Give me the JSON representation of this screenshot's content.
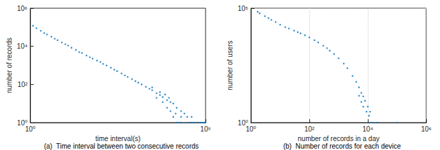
{
  "chart_data": [
    {
      "type": "scatter",
      "title": "(a)  Time interval between two consecutive records",
      "x_label": "time interval(s)",
      "y_label": "number of records",
      "log": true,
      "grid": false,
      "color": "#0072bd",
      "marker": "dot",
      "xlim": [
        1,
        100000
      ],
      "ylim": [
        1,
        1000000
      ],
      "xticks": [
        {
          "value": 1,
          "label": "10⁰"
        },
        {
          "value": 100000,
          "label": "10⁵"
        }
      ],
      "yticks": [
        {
          "value": 1,
          "label": "10⁰"
        },
        {
          "value": 100,
          "label": "10²"
        },
        {
          "value": 10000,
          "label": "10⁴"
        },
        {
          "value": 1000000,
          "label": "10⁶"
        }
      ],
      "x": [
        1.2,
        1.5,
        2,
        2.5,
        3,
        4,
        5,
        6,
        8,
        10,
        12,
        15,
        20,
        25,
        30,
        40,
        50,
        60,
        80,
        100,
        120,
        150,
        200,
        250,
        300,
        400,
        500,
        600,
        800,
        1000,
        1200,
        1500,
        2000,
        2500,
        3000,
        4000,
        5000,
        6000,
        8000,
        10000,
        3000,
        4000,
        5000,
        6000,
        7000,
        8000,
        9000,
        10000,
        12000,
        12000,
        15000,
        15000,
        20000,
        20000,
        20000,
        25000,
        30000,
        30000,
        40000,
        40000,
        50000,
        60000,
        70000,
        80000,
        90000,
        100000,
        14000,
        18000,
        35000,
        45000
      ],
      "values": [
        120000,
        90000,
        65000,
        50000,
        42000,
        32000,
        25000,
        21000,
        16000,
        13000,
        11000,
        8500,
        6500,
        5000,
        4500,
        3300,
        2700,
        2300,
        1800,
        1500,
        1200,
        1000,
        760,
        600,
        500,
        380,
        300,
        250,
        190,
        150,
        125,
        100,
        75,
        60,
        50,
        35,
        28,
        22,
        15,
        12,
        70,
        20,
        40,
        12,
        30,
        6,
        20,
        4,
        10,
        2,
        6,
        1,
        4,
        2,
        1,
        3,
        1,
        2,
        1,
        2,
        1,
        1,
        1,
        1,
        1,
        1,
        3,
        1,
        1,
        1
      ]
    },
    {
      "type": "scatter",
      "title": "(b)  Number of records for each device",
      "x_label": "number of records in a day",
      "y_label": "number of users",
      "log": true,
      "grid": true,
      "color": "#0072bd",
      "marker": "dot",
      "xlim": [
        1,
        1000000
      ],
      "ylim": [
        1,
        100000
      ],
      "xticks": [
        {
          "value": 1,
          "label": "10⁰"
        },
        {
          "value": 100,
          "label": "10²"
        },
        {
          "value": 10000,
          "label": "10⁴"
        },
        {
          "value": 1000000,
          "label": "10⁶"
        }
      ],
      "yticks": [
        {
          "value": 1,
          "label": "10⁰"
        },
        {
          "value": 100000,
          "label": "10⁵"
        }
      ],
      "x": [
        1.7,
        2,
        3,
        4,
        5,
        7,
        10,
        15,
        20,
        30,
        40,
        50,
        70,
        100,
        150,
        200,
        300,
        400,
        500,
        700,
        1000,
        1500,
        2000,
        3000,
        4000,
        5000,
        6000,
        7000,
        8000,
        10000,
        12000,
        9000,
        11000,
        13000,
        15000,
        20000,
        100000,
        7000,
        5000,
        6000
      ],
      "values": [
        70000,
        60000,
        45000,
        37000,
        31000,
        25000,
        19000,
        15000,
        13000,
        10500,
        9000,
        8000,
        6600,
        5300,
        4000,
        3200,
        2300,
        1800,
        1400,
        1000,
        650,
        380,
        240,
        110,
        60,
        35,
        20,
        14,
        9,
        5,
        3,
        3,
        2,
        1,
        1,
        1,
        1,
        5,
        15,
        8
      ]
    }
  ]
}
